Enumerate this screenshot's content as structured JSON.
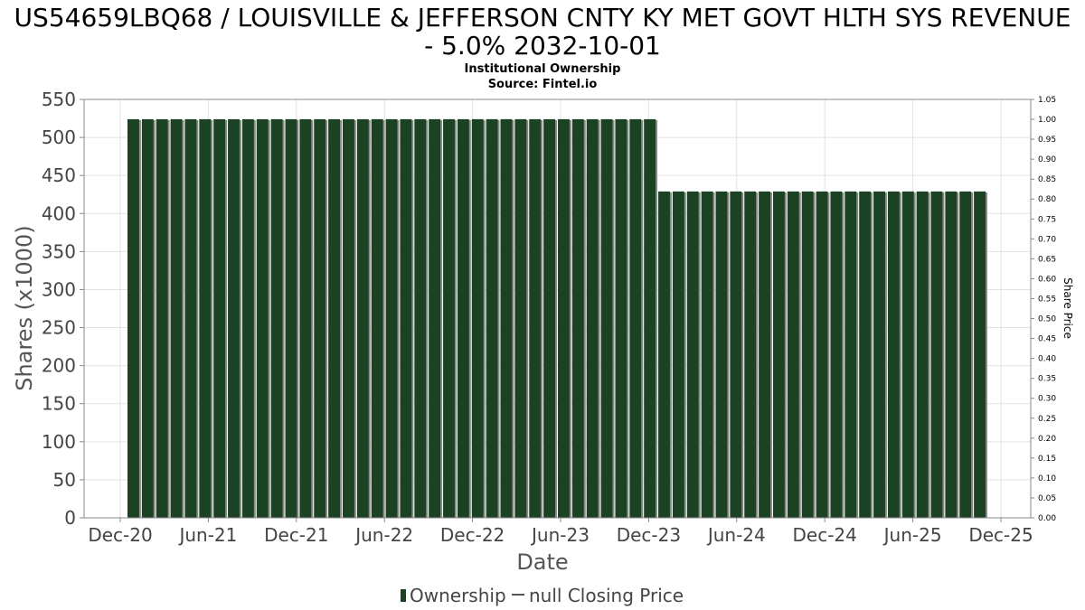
{
  "chart_data": {
    "type": "bar",
    "title_line1": "US54659LBQ68 / LOUISVILLE & JEFFERSON CNTY KY MET GOVT HLTH SYS REVENUE",
    "title_line2": "- 5.0% 2032-10-01",
    "subtitle_line1": "Institutional Ownership",
    "subtitle_line2": "Source: Fintel.io",
    "xlabel": "Date",
    "ylabel": "Shares (x1000)",
    "y2label": "Share Price",
    "ylim": [
      0,
      550
    ],
    "y2lim": [
      0,
      1.05
    ],
    "yticks": [
      "0",
      "50",
      "100",
      "150",
      "200",
      "250",
      "300",
      "350",
      "400",
      "450",
      "500",
      "550"
    ],
    "y2ticks": [
      "0.00",
      "0.05",
      "0.10",
      "0.15",
      "0.20",
      "0.25",
      "0.30",
      "0.35",
      "0.40",
      "0.45",
      "0.50",
      "0.55",
      "0.60",
      "0.65",
      "0.70",
      "0.75",
      "0.80",
      "0.85",
      "0.90",
      "0.95",
      "1.00",
      "1.05"
    ],
    "xticks": [
      "Dec-20",
      "Jun-21",
      "Dec-21",
      "Jun-22",
      "Dec-22",
      "Jun-23",
      "Dec-23",
      "Jun-24",
      "Dec-24",
      "Jun-25",
      "Dec-25"
    ],
    "series": [
      {
        "name": "Ownership",
        "color": "#1a4223",
        "bar_count": 60,
        "segments": [
          {
            "count": 37,
            "value": 524
          },
          {
            "count": 23,
            "value": 429
          }
        ]
      },
      {
        "name": "null Closing Price",
        "color": "#555555",
        "values": []
      }
    ],
    "legend": [
      {
        "label": "Ownership",
        "symbol": "bar"
      },
      {
        "label": "null Closing Price",
        "symbol": "line"
      }
    ],
    "legend_placement": "bottom-center",
    "grid": true
  }
}
